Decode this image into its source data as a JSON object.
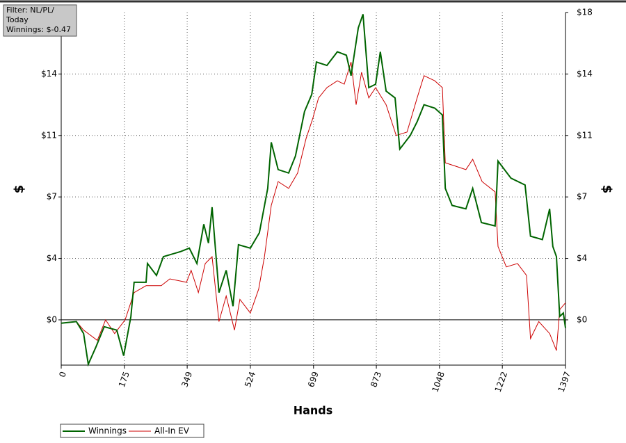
{
  "chart_data": {
    "type": "line",
    "annotations": [
      "Filter: NL/PL/",
      "Today",
      "Winnings: $-0.47"
    ],
    "xlabel": "Hands",
    "ylabel": "$",
    "y2label": "$",
    "xlim": [
      0,
      1397
    ],
    "xticks": [
      0,
      175,
      349,
      524,
      699,
      873,
      1048,
      1222,
      1397
    ],
    "ylim": [
      -2.65,
      18
    ],
    "yticks": [
      {
        "value": 0,
        "label": "$0"
      },
      {
        "value": 3.6,
        "label": "$4"
      },
      {
        "value": 7.2,
        "label": "$7"
      },
      {
        "value": 10.8,
        "label": "$11"
      },
      {
        "value": 14.4,
        "label": "$14"
      }
    ],
    "y2lim": [
      -2.65,
      18
    ],
    "y2ticks": [
      {
        "value": 0,
        "label": "$0"
      },
      {
        "value": 3.6,
        "label": "$4"
      },
      {
        "value": 7.2,
        "label": "$7"
      },
      {
        "value": 10.8,
        "label": "$11"
      },
      {
        "value": 14.4,
        "label": "$14"
      },
      {
        "value": 18,
        "label": "$18"
      }
    ],
    "grid": true,
    "legend": "bottom-left",
    "series": [
      {
        "name": "Winnings",
        "color": "#006400",
        "x": [
          0,
          42,
          62,
          75,
          96,
          119,
          154,
          173,
          193,
          202,
          235,
          239,
          264,
          283,
          331,
          355,
          376,
          395,
          408,
          418,
          437,
          457,
          476,
          491,
          524,
          549,
          572,
          582,
          601,
          630,
          649,
          674,
          694,
          707,
          736,
          765,
          790,
          803,
          823,
          836,
          852,
          871,
          884,
          900,
          925,
          938,
          967,
          986,
          1005,
          1035,
          1056,
          1064,
          1083,
          1121,
          1140,
          1164,
          1202,
          1210,
          1246,
          1285,
          1300,
          1333,
          1353,
          1362,
          1372,
          1381,
          1391,
          1397
        ],
        "values": [
          -0.2,
          -0.1,
          -0.8,
          -2.6,
          -1.6,
          -0.4,
          -0.6,
          -2.1,
          0.2,
          2.2,
          2.2,
          3.3,
          2.6,
          3.7,
          4.0,
          4.2,
          3.3,
          5.6,
          4.5,
          6.6,
          1.6,
          2.9,
          0.8,
          4.4,
          4.2,
          5.1,
          7.7,
          10.4,
          8.8,
          8.6,
          9.6,
          12.2,
          13.2,
          15.1,
          14.9,
          15.7,
          15.5,
          14.3,
          17.1,
          17.9,
          13.6,
          13.8,
          15.7,
          13.4,
          13.0,
          10.0,
          10.8,
          11.6,
          12.6,
          12.4,
          12.0,
          7.7,
          6.7,
          6.5,
          7.7,
          5.7,
          5.5,
          9.3,
          8.3,
          7.9,
          4.9,
          4.7,
          6.5,
          4.3,
          3.7,
          0.2,
          0.4,
          -0.47
        ]
      },
      {
        "name": "All-In EV",
        "color": "#cc0000",
        "x": [
          0,
          42,
          62,
          100,
          123,
          148,
          177,
          202,
          235,
          277,
          301,
          347,
          360,
          380,
          399,
          418,
          437,
          457,
          480,
          495,
          524,
          547,
          563,
          582,
          601,
          630,
          655,
          678,
          697,
          713,
          736,
          765,
          784,
          803,
          817,
          832,
          852,
          871,
          900,
          928,
          958,
          986,
          1005,
          1035,
          1056,
          1064,
          1093,
          1121,
          1140,
          1166,
          1202,
          1210,
          1233,
          1264,
          1289,
          1300,
          1323,
          1353,
          1372,
          1381,
          1397
        ],
        "values": [
          -0.2,
          -0.1,
          -0.6,
          -1.2,
          0,
          -0.8,
          0,
          1.6,
          2.0,
          2.0,
          2.4,
          2.2,
          2.9,
          1.6,
          3.3,
          3.7,
          -0.1,
          1.4,
          -0.6,
          1.2,
          0.4,
          1.8,
          3.7,
          6.7,
          8.1,
          7.7,
          8.6,
          10.6,
          11.8,
          13.0,
          13.6,
          14.0,
          13.8,
          15.1,
          12.6,
          14.5,
          13.0,
          13.6,
          12.6,
          10.8,
          11.0,
          13.0,
          14.3,
          14.0,
          13.6,
          9.2,
          9.0,
          8.8,
          9.4,
          8.1,
          7.5,
          4.3,
          3.1,
          3.3,
          2.6,
          -1.1,
          -0.1,
          -0.8,
          -1.8,
          0.6,
          1.0
        ]
      }
    ]
  }
}
